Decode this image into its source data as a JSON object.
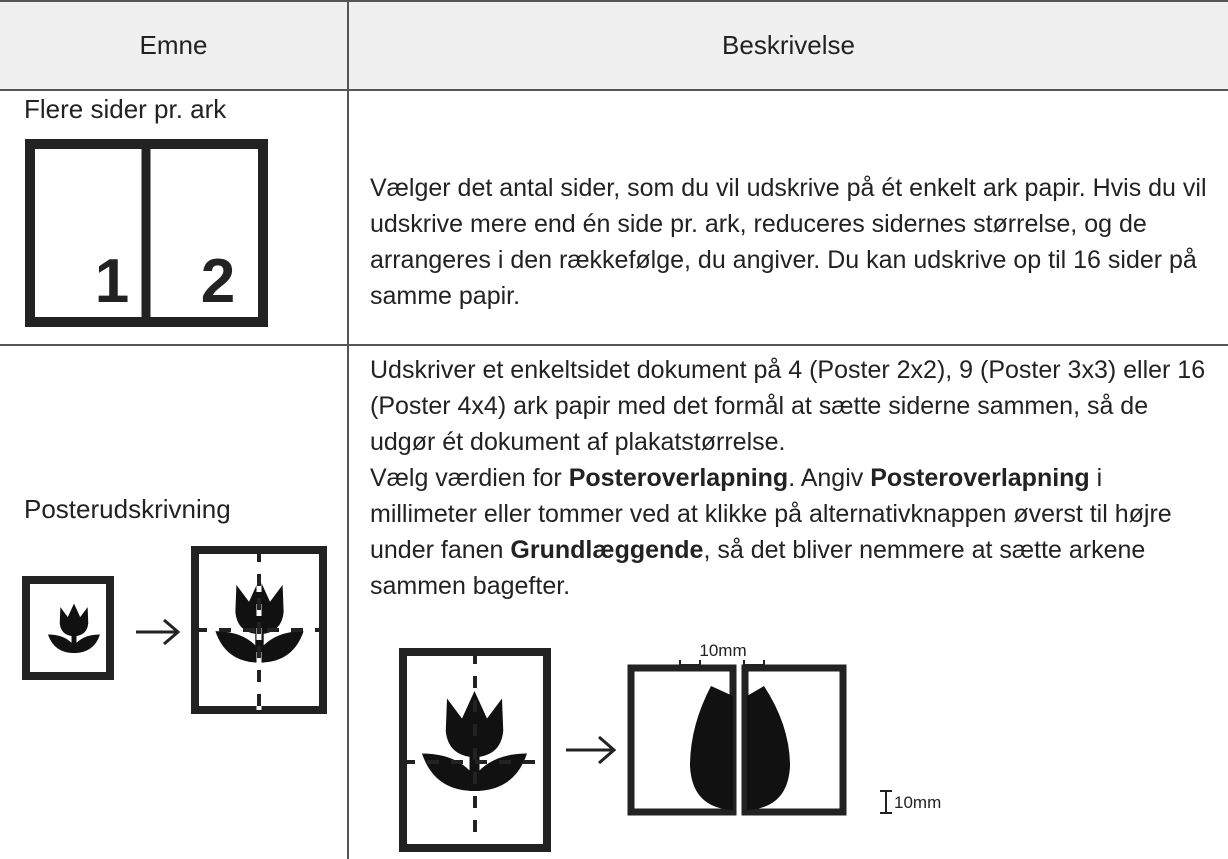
{
  "table": {
    "header": [
      "Emne",
      "Beskrivelse"
    ],
    "rows": [
      {
        "topic": "Flere sider pr. ark",
        "icon_labels": [
          "1",
          "2"
        ],
        "description": [
          "Vælger det antal sider, som du vil udskrive på ét enkelt ark papir. Hvis du vil udskrive mere end én side pr. ark, reduceres sidernes størrelse, og de arrangeres i den rækkefølge, du angiver. Du kan udskrive op til 16 sider på samme papir."
        ]
      },
      {
        "topic": "Posterudskrivning",
        "description": [
          [
            "Udskriver et enkeltsidet dokument på 4 (Poster 2x2), 9 (Poster 3x3) eller 16 (Poster 4x4) ark papir med det formål at sætte siderne sammen, så de udgør ét dokument af plakatstørrelse."
          ],
          [
            "Vælg værdien for ",
            "Posteroverlapning",
            ". Angiv ",
            "Posteroverlapning",
            " i millimeter eller tommer ved at klikke på alternativknappen øverst til højre under fanen ",
            "Grundlæggende",
            ", så det bliver nemmere at sætte arkene sammen bagefter."
          ]
        ],
        "illustration_labels": [
          "10mm",
          "10mm"
        ]
      }
    ]
  }
}
